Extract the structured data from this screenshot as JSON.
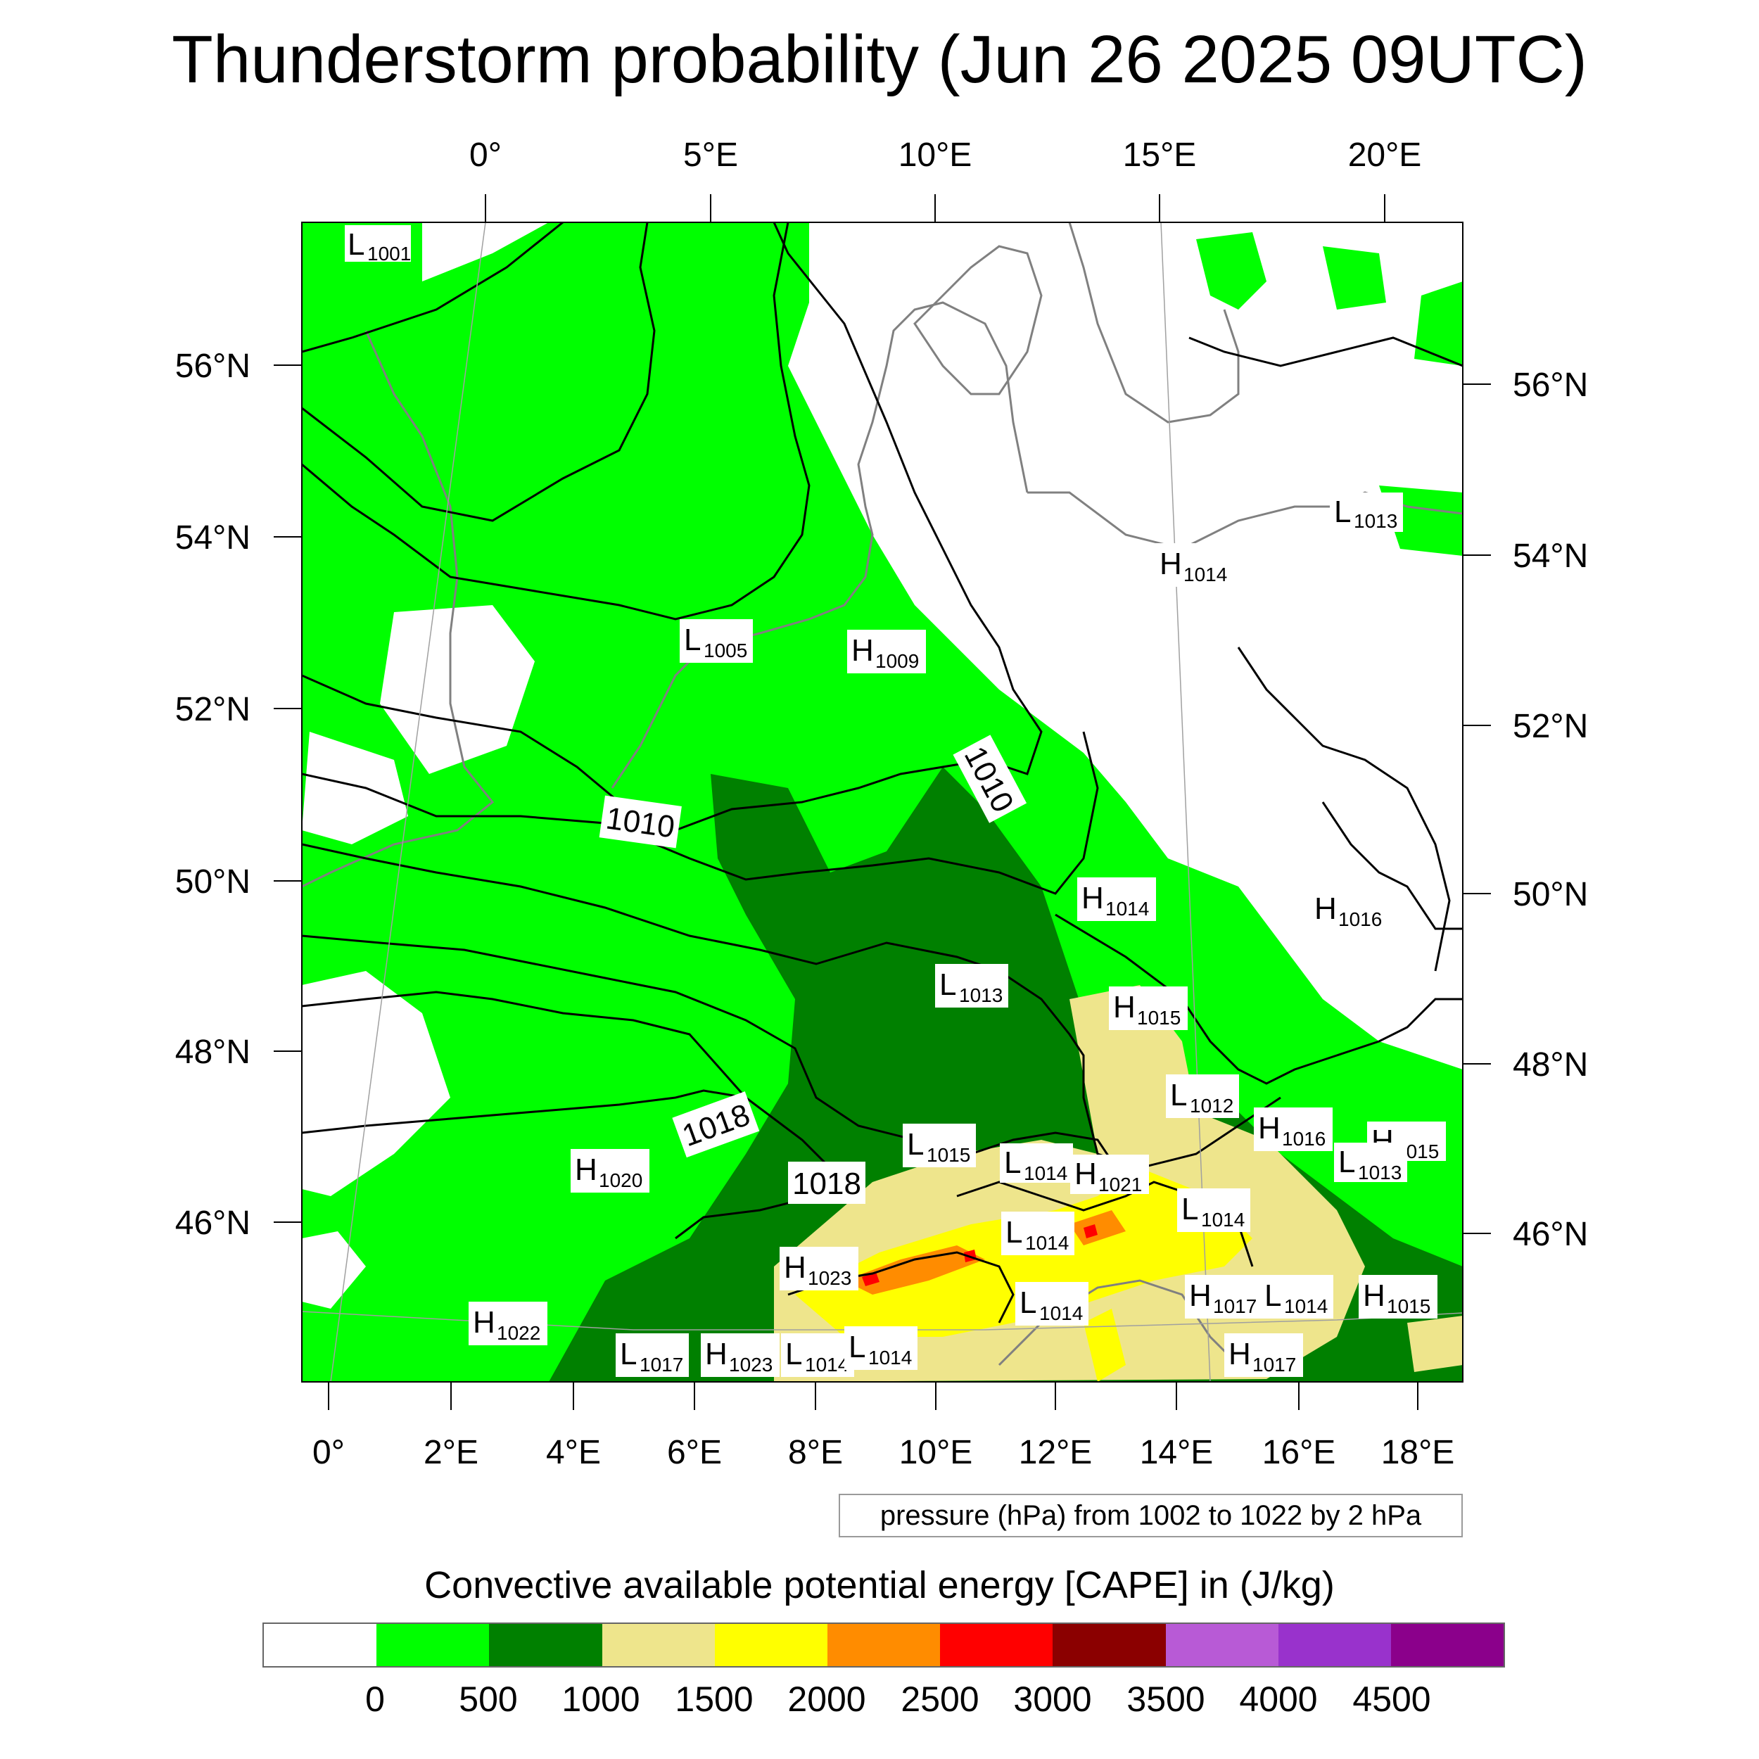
{
  "title": "Thunderstorm probability (Jun 26 2025 09UTC)",
  "axes": {
    "top_lon_labels": [
      "0°",
      "5°E",
      "10°E",
      "15°E",
      "20°E"
    ],
    "bottom_lon_labels": [
      "0°",
      "2°E",
      "4°E",
      "6°E",
      "8°E",
      "10°E",
      "12°E",
      "14°E",
      "16°E",
      "18°E"
    ],
    "left_lat_labels": [
      "56°N",
      "54°N",
      "52°N",
      "50°N",
      "48°N",
      "46°N"
    ],
    "right_lat_labels": [
      "56°N",
      "54°N",
      "52°N",
      "50°N",
      "48°N",
      "46°N"
    ]
  },
  "pressure_centers": [
    {
      "type": "L",
      "value": "1001"
    },
    {
      "type": "L",
      "value": "1005"
    },
    {
      "type": "H",
      "value": "1009"
    },
    {
      "type": "L",
      "value": "1013"
    },
    {
      "type": "H",
      "value": "1014"
    },
    {
      "type": "H",
      "value": "1014"
    },
    {
      "type": "H",
      "value": "1016"
    },
    {
      "type": "L",
      "value": "1013"
    },
    {
      "type": "H",
      "value": "1015"
    },
    {
      "type": "L",
      "value": "1012"
    },
    {
      "type": "H",
      "value": "1016"
    },
    {
      "type": "H",
      "value": "1015"
    },
    {
      "type": "L",
      "value": "1013"
    },
    {
      "type": "L",
      "value": "1015"
    },
    {
      "type": "L",
      "value": "1014"
    },
    {
      "type": "H",
      "value": "1021"
    },
    {
      "type": "H",
      "value": "1020"
    },
    {
      "type": "L",
      "value": "1014"
    },
    {
      "type": "L",
      "value": "1014"
    },
    {
      "type": "H",
      "value": "1023"
    },
    {
      "type": "H",
      "value": "1017"
    },
    {
      "type": "L",
      "value": "1014"
    },
    {
      "type": "H",
      "value": "1015"
    },
    {
      "type": "L",
      "value": "1014"
    },
    {
      "type": "H",
      "value": "1022"
    },
    {
      "type": "L",
      "value": "1017"
    },
    {
      "type": "H",
      "value": "1023"
    },
    {
      "type": "L",
      "value": "1014"
    },
    {
      "type": "L",
      "value": "1014"
    },
    {
      "type": "H",
      "value": "1017"
    }
  ],
  "contour_labels": [
    "1010",
    "1010",
    "1018",
    "1018"
  ],
  "contour_note": "pressure (hPa) from 1002 to 1022 by 2 hPa",
  "colorbar": {
    "title": "Convective available potential energy [CAPE] in (J/kg)",
    "labels": [
      "0",
      "500",
      "1000",
      "1500",
      "2000",
      "2500",
      "3000",
      "3500",
      "4000",
      "4500"
    ],
    "colors": [
      "#ffffff",
      "#00ff00",
      "#008000",
      "#eee58c",
      "#ffff00",
      "#ff8c00",
      "#ff0000",
      "#8b0000",
      "#b85ad6",
      "#9932cc",
      "#8b008b"
    ]
  }
}
